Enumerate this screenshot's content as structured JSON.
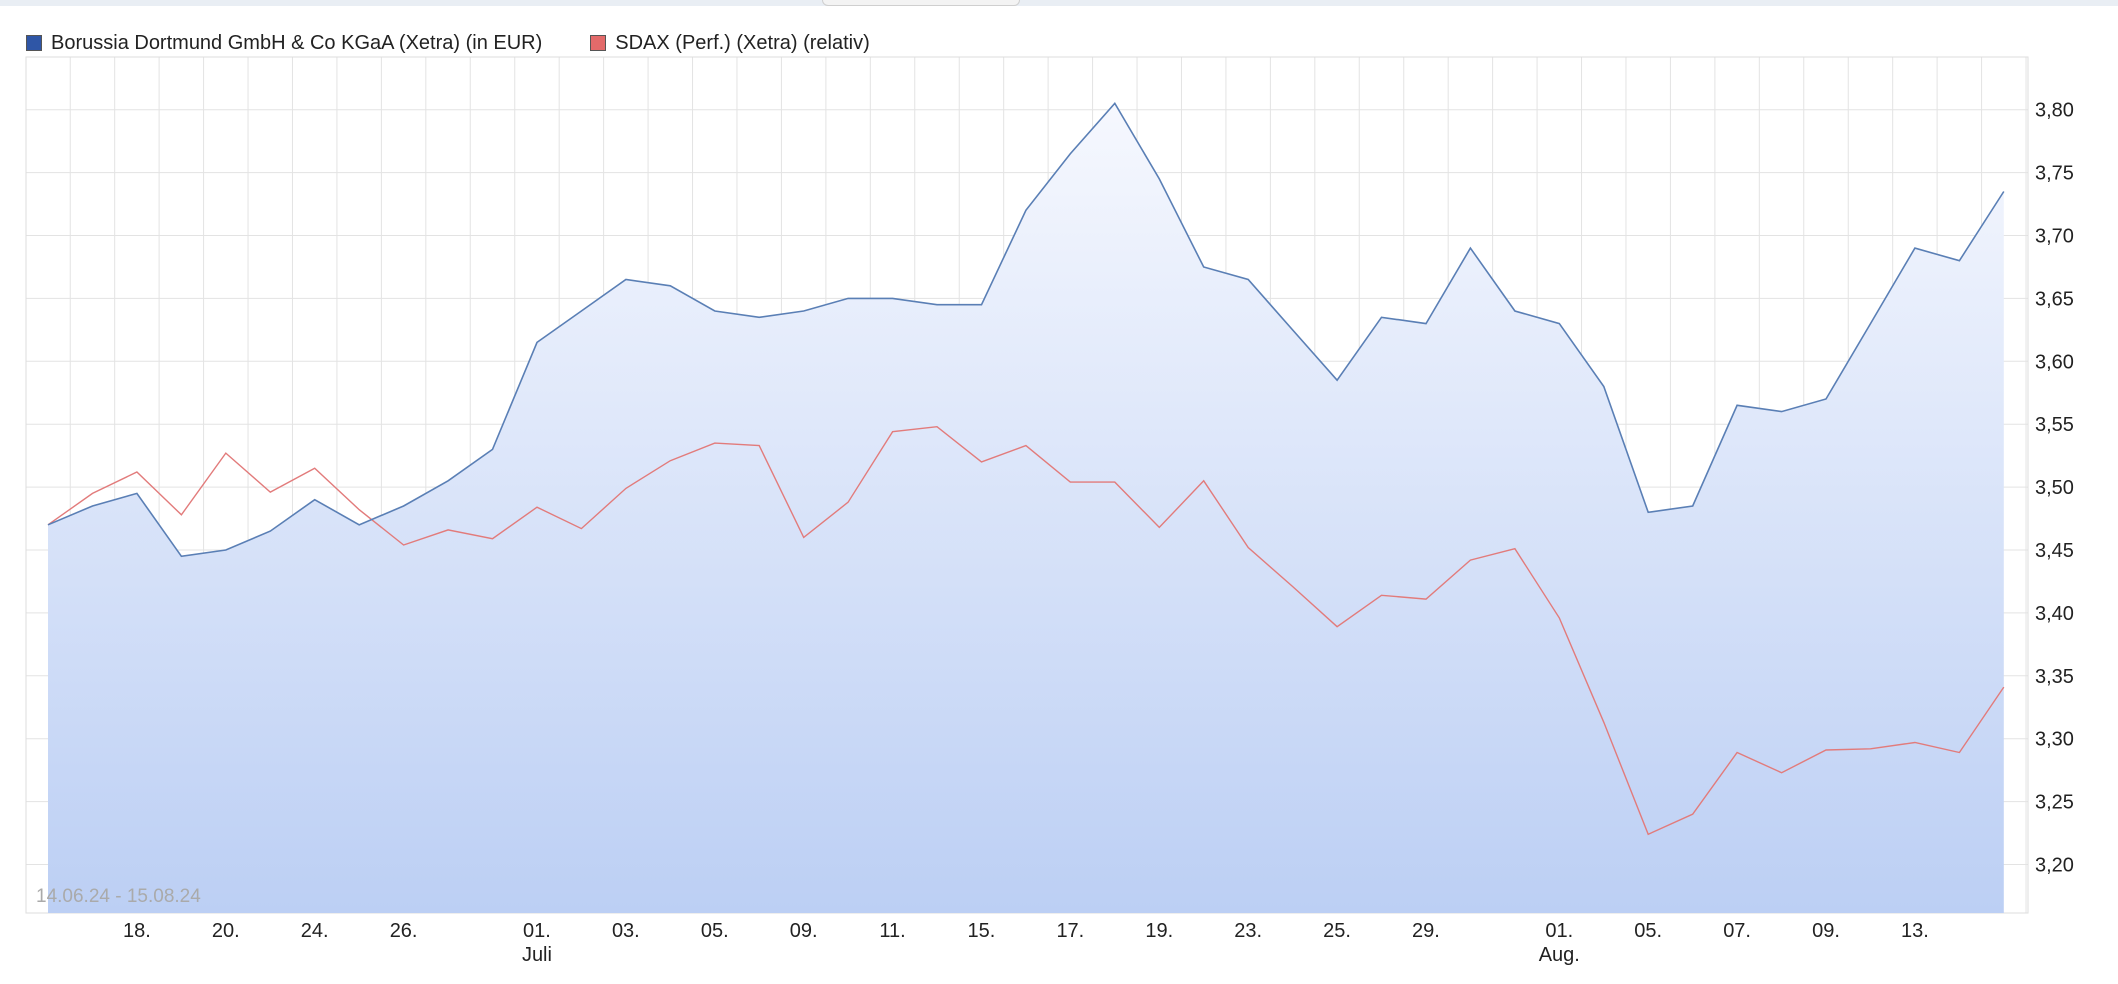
{
  "legend": {
    "series1": "Borussia Dortmund GmbH & Co KGaA (Xetra) (in EUR)",
    "series2": "SDAX (Perf.) (Xetra) (relativ)"
  },
  "date_range": "14.06.24 - 15.08.24",
  "colors": {
    "series1_line": "#5a7fb5",
    "series1_swatch": "#2f56a6",
    "series2_line": "#e27b7b",
    "series2_swatch": "#e36a6a",
    "area_top": "#f6f8fe",
    "area_bottom": "#bccff4",
    "grid": "#e3e3e3"
  },
  "chart_data": {
    "type": "line",
    "title": "",
    "xlabel": "",
    "ylabel": "",
    "ylim": [
      3.16,
      3.845
    ],
    "yticks": [
      "3,20",
      "3,25",
      "3,30",
      "3,35",
      "3,40",
      "3,45",
      "3,50",
      "3,55",
      "3,60",
      "3,65",
      "3,70",
      "3,75",
      "3,80"
    ],
    "ytick_values": [
      3.2,
      3.25,
      3.3,
      3.35,
      3.4,
      3.45,
      3.5,
      3.55,
      3.6,
      3.65,
      3.7,
      3.75,
      3.8
    ],
    "grid": true,
    "legend_position": "top-left",
    "x_tick_labels": [
      {
        "index": 2,
        "label": "18."
      },
      {
        "index": 4,
        "label": "20."
      },
      {
        "index": 6,
        "label": "24."
      },
      {
        "index": 8,
        "label": "26."
      },
      {
        "index": 11,
        "label": "01.",
        "sublabel": "Juli"
      },
      {
        "index": 13,
        "label": "03."
      },
      {
        "index": 15,
        "label": "05."
      },
      {
        "index": 17,
        "label": "09."
      },
      {
        "index": 19,
        "label": "11."
      },
      {
        "index": 21,
        "label": "15."
      },
      {
        "index": 23,
        "label": "17."
      },
      {
        "index": 25,
        "label": "19."
      },
      {
        "index": 27,
        "label": "23."
      },
      {
        "index": 29,
        "label": "25."
      },
      {
        "index": 31,
        "label": "29."
      },
      {
        "index": 34,
        "label": "01.",
        "sublabel": "Aug."
      },
      {
        "index": 36,
        "label": "05."
      },
      {
        "index": 38,
        "label": "07."
      },
      {
        "index": 40,
        "label": "09."
      },
      {
        "index": 42,
        "label": "13."
      }
    ],
    "series": [
      {
        "name": "Borussia Dortmund GmbH & Co KGaA (Xetra) (in EUR)",
        "values": [
          3.47,
          3.485,
          3.495,
          3.445,
          3.45,
          3.465,
          3.49,
          3.47,
          3.485,
          3.505,
          3.53,
          3.615,
          3.64,
          3.665,
          3.66,
          3.64,
          3.635,
          3.64,
          3.65,
          3.65,
          3.645,
          3.645,
          3.72,
          3.765,
          3.805,
          3.745,
          3.675,
          3.665,
          3.625,
          3.585,
          3.635,
          3.63,
          3.69,
          3.64,
          3.63,
          3.58,
          3.48,
          3.485,
          3.565,
          3.56,
          3.57,
          3.63,
          3.69,
          3.68,
          3.735
        ]
      },
      {
        "name": "SDAX (Perf.) (Xetra) (relativ)",
        "values": [
          3.47,
          3.495,
          3.512,
          3.478,
          3.527,
          3.496,
          3.515,
          3.482,
          3.454,
          3.466,
          3.459,
          3.484,
          3.467,
          3.499,
          3.521,
          3.535,
          3.533,
          3.46,
          3.488,
          3.544,
          3.548,
          3.52,
          3.533,
          3.504,
          3.504,
          3.468,
          3.505,
          3.452,
          3.421,
          3.389,
          3.414,
          3.411,
          3.442,
          3.451,
          3.396,
          3.313,
          3.224,
          3.24,
          3.289,
          3.273,
          3.291,
          3.292,
          3.297,
          3.289,
          3.341
        ]
      }
    ]
  }
}
